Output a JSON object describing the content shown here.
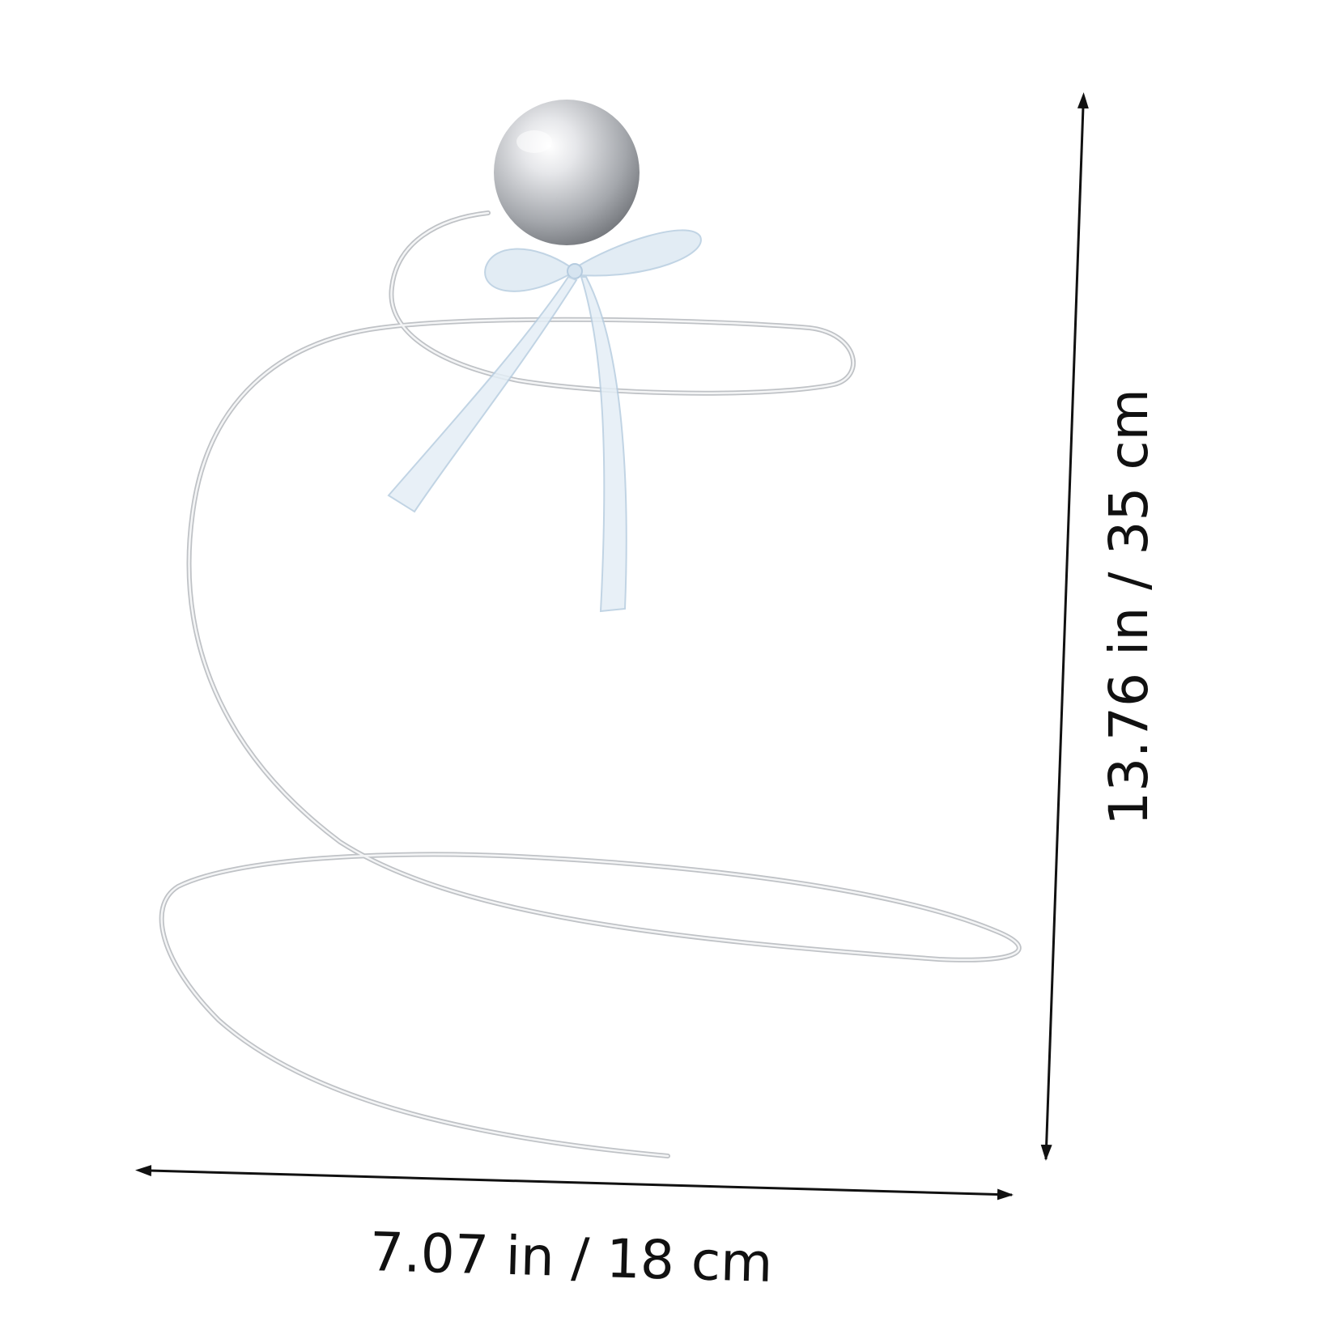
{
  "product": {
    "name_icon": "spiral-wire-stand-with-silver-ball-and-ribbon-bow"
  },
  "dimensions": {
    "width_label": "7.07 in / 18 cm",
    "height_label": "13.76 in / 35 cm"
  },
  "colors": {
    "background": "#ffffff",
    "wire": "#c9cbce",
    "wire_highlight": "#f4f5f6",
    "ball_light": "#f2f3f5",
    "ball_dark": "#6e7176",
    "ribbon": "#cfe0ee",
    "ribbon_edge": "#b7cde0",
    "dimension_line": "#111111"
  }
}
